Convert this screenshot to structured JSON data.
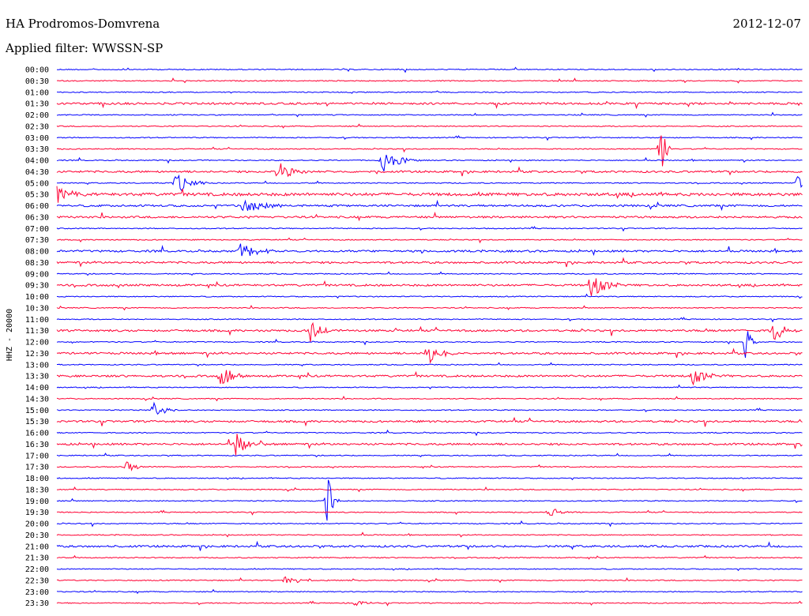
{
  "header": {
    "station": "HA Prodromos-Domvrena",
    "date": "2012-12-07",
    "filter": "Applied filter: WWSSN-SP"
  },
  "chart_data": {
    "type": "line",
    "title": "HA Prodromos-Domvrena",
    "subtitle": "Applied filter: WWSSN-SP",
    "ylabel": "HHZ - 20000",
    "xlabel": "",
    "grid": false,
    "line_colors": [
      "#0000ff",
      "#ff0033"
    ],
    "row_labels": [
      "00:00",
      "00:30",
      "01:00",
      "01:30",
      "02:00",
      "02:30",
      "03:00",
      "03:30",
      "04:00",
      "04:30",
      "05:00",
      "05:30",
      "06:00",
      "06:30",
      "07:00",
      "07:30",
      "08:00",
      "08:30",
      "09:00",
      "09:30",
      "10:00",
      "10:30",
      "11:00",
      "11:30",
      "12:00",
      "12:30",
      "13:00",
      "13:30",
      "14:00",
      "14:30",
      "15:00",
      "15:30",
      "16:00",
      "16:30",
      "17:00",
      "17:30",
      "18:00",
      "18:30",
      "19:00",
      "19:30",
      "20:00",
      "20:30",
      "21:00",
      "21:30",
      "22:00",
      "22:30",
      "23:00",
      "23:30"
    ],
    "noise_level": [
      1,
      1,
      1,
      2,
      1,
      1,
      1,
      1,
      1,
      2,
      1,
      3,
      2,
      2,
      1,
      1,
      2,
      2,
      1,
      2,
      1,
      1,
      1,
      2,
      1,
      2,
      1,
      2,
      1,
      1,
      1,
      2,
      1,
      2,
      1,
      1,
      1,
      1,
      1,
      1,
      1,
      1,
      2,
      1,
      1,
      1,
      1,
      1
    ],
    "events": [
      {
        "row": "03:30",
        "minute": 24.3,
        "amplitude": 50,
        "duration": 0.4
      },
      {
        "row": "04:00",
        "minute": 13.1,
        "amplitude": 18,
        "duration": 1.6
      },
      {
        "row": "04:30",
        "minute": 8.9,
        "amplitude": 13,
        "duration": 1.6
      },
      {
        "row": "05:00",
        "minute": 4.8,
        "amplitude": 14,
        "duration": 1.4
      },
      {
        "row": "05:00",
        "minute": 29.8,
        "amplitude": 12,
        "duration": 1.6
      },
      {
        "row": "05:30",
        "minute": 0.0,
        "amplitude": 12,
        "duration": 1.2
      },
      {
        "row": "06:00",
        "minute": 7.5,
        "amplitude": 10,
        "duration": 2.0
      },
      {
        "row": "08:00",
        "minute": 7.4,
        "amplitude": 11,
        "duration": 1.5
      },
      {
        "row": "09:30",
        "minute": 21.5,
        "amplitude": 18,
        "duration": 1.5
      },
      {
        "row": "11:30",
        "minute": 10.2,
        "amplitude": 16,
        "duration": 1.2
      },
      {
        "row": "11:30",
        "minute": 28.8,
        "amplitude": 16,
        "duration": 1.2
      },
      {
        "row": "12:00",
        "minute": 27.7,
        "amplitude": 28,
        "duration": 0.5
      },
      {
        "row": "12:30",
        "minute": 14.9,
        "amplitude": 16,
        "duration": 1.2
      },
      {
        "row": "13:30",
        "minute": 6.6,
        "amplitude": 14,
        "duration": 1.4
      },
      {
        "row": "13:30",
        "minute": 25.6,
        "amplitude": 12,
        "duration": 1.4
      },
      {
        "row": "15:00",
        "minute": 3.9,
        "amplitude": 10,
        "duration": 1.2
      },
      {
        "row": "16:30",
        "minute": 7.2,
        "amplitude": 16,
        "duration": 1.3
      },
      {
        "row": "17:30",
        "minute": 2.8,
        "amplitude": 8,
        "duration": 1.0
      },
      {
        "row": "19:00",
        "minute": 10.9,
        "amplitude": 50,
        "duration": 0.5
      },
      {
        "row": "19:30",
        "minute": 19.8,
        "amplitude": 7,
        "duration": 1.2
      },
      {
        "row": "22:30",
        "minute": 9.2,
        "amplitude": 6,
        "duration": 1.8
      },
      {
        "row": "23:30",
        "minute": 12.0,
        "amplitude": 5,
        "duration": 1.0
      }
    ]
  }
}
